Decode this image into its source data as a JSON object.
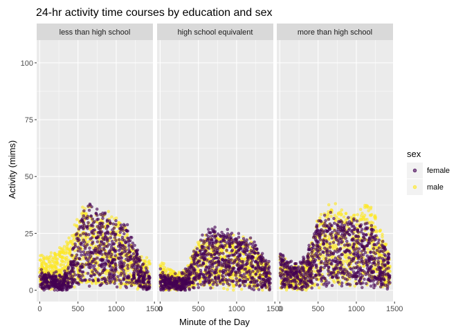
{
  "chart_data": {
    "type": "scatter",
    "title": "24-hr activity time courses by education and sex",
    "xlabel": "Minute of the Day",
    "ylabel": "Activity (mims)",
    "xlim": [
      -40,
      1480
    ],
    "ylim": [
      -5,
      110
    ],
    "x_ticks": [
      0,
      500,
      1000,
      1500
    ],
    "x_tick_labels": [
      "0",
      "500",
      "1000",
      "1500"
    ],
    "y_ticks": [
      0,
      25,
      50,
      75,
      100
    ],
    "y_tick_labels": [
      "0",
      "25",
      "50",
      "75",
      "100"
    ],
    "grid": true,
    "legend": {
      "title": "sex",
      "position": "right"
    },
    "series": [
      {
        "name": "female",
        "color": "#440154"
      },
      {
        "name": "male",
        "color": "#FDE725"
      }
    ],
    "facets": [
      {
        "label": "less than high school",
        "profiles": {
          "female": [
            [
              0,
              4
            ],
            [
              120,
              5
            ],
            [
              240,
              3
            ],
            [
              360,
              5
            ],
            [
              420,
              10
            ],
            [
              480,
              15
            ],
            [
              540,
              20
            ],
            [
              600,
              22
            ],
            [
              660,
              24
            ],
            [
              720,
              22
            ],
            [
              780,
              21
            ],
            [
              840,
              22
            ],
            [
              900,
              20
            ],
            [
              960,
              19
            ],
            [
              1020,
              20
            ],
            [
              1080,
              19
            ],
            [
              1140,
              17
            ],
            [
              1200,
              15
            ],
            [
              1260,
              12
            ],
            [
              1320,
              8
            ],
            [
              1380,
              6
            ],
            [
              1440,
              4
            ]
          ],
          "male": [
            [
              0,
              9
            ],
            [
              120,
              9
            ],
            [
              240,
              11
            ],
            [
              360,
              12
            ],
            [
              420,
              16
            ],
            [
              480,
              19
            ],
            [
              540,
              21
            ],
            [
              600,
              22
            ],
            [
              660,
              23
            ],
            [
              720,
              23
            ],
            [
              780,
              22
            ],
            [
              840,
              22
            ],
            [
              900,
              21
            ],
            [
              960,
              20
            ],
            [
              1020,
              19
            ],
            [
              1080,
              18
            ],
            [
              1140,
              16
            ],
            [
              1200,
              14
            ],
            [
              1260,
              11
            ],
            [
              1320,
              9
            ],
            [
              1380,
              8
            ],
            [
              1440,
              7
            ]
          ]
        }
      },
      {
        "label": "high school equivalent",
        "profiles": {
          "female": [
            [
              0,
              5
            ],
            [
              120,
              3
            ],
            [
              240,
              3
            ],
            [
              360,
              5
            ],
            [
              420,
              9
            ],
            [
              480,
              12
            ],
            [
              540,
              14
            ],
            [
              600,
              16
            ],
            [
              660,
              17
            ],
            [
              720,
              17
            ],
            [
              780,
              16
            ],
            [
              840,
              16
            ],
            [
              900,
              16
            ],
            [
              960,
              15
            ],
            [
              1020,
              15
            ],
            [
              1080,
              15
            ],
            [
              1140,
              14
            ],
            [
              1200,
              13
            ],
            [
              1260,
              12
            ],
            [
              1320,
              10
            ],
            [
              1380,
              8
            ],
            [
              1440,
              6
            ]
          ],
          "male": [
            [
              0,
              7
            ],
            [
              120,
              5
            ],
            [
              240,
              4
            ],
            [
              360,
              6
            ],
            [
              420,
              10
            ],
            [
              480,
              13
            ],
            [
              540,
              14
            ],
            [
              600,
              15
            ],
            [
              660,
              15
            ],
            [
              720,
              15
            ],
            [
              780,
              15
            ],
            [
              840,
              15
            ],
            [
              900,
              14
            ],
            [
              960,
              14
            ],
            [
              1020,
              14
            ],
            [
              1080,
              14
            ],
            [
              1140,
              13
            ],
            [
              1200,
              12
            ],
            [
              1260,
              11
            ],
            [
              1320,
              9
            ],
            [
              1380,
              8
            ],
            [
              1440,
              6
            ]
          ]
        }
      },
      {
        "label": "more than high school",
        "profiles": {
          "female": [
            [
              0,
              10
            ],
            [
              120,
              8
            ],
            [
              240,
              7
            ],
            [
              360,
              10
            ],
            [
              420,
              14
            ],
            [
              480,
              18
            ],
            [
              540,
              20
            ],
            [
              600,
              21
            ],
            [
              660,
              21
            ],
            [
              720,
              20
            ],
            [
              780,
              19
            ],
            [
              840,
              19
            ],
            [
              900,
              19
            ],
            [
              960,
              19
            ],
            [
              1020,
              18
            ],
            [
              1080,
              19
            ],
            [
              1140,
              19
            ],
            [
              1200,
              18
            ],
            [
              1260,
              16
            ],
            [
              1320,
              14
            ],
            [
              1380,
              12
            ],
            [
              1440,
              10
            ]
          ],
          "male": [
            [
              0,
              10
            ],
            [
              120,
              7
            ],
            [
              240,
              6
            ],
            [
              360,
              9
            ],
            [
              420,
              14
            ],
            [
              480,
              19
            ],
            [
              540,
              22
            ],
            [
              600,
              23
            ],
            [
              660,
              24
            ],
            [
              720,
              23
            ],
            [
              780,
              22
            ],
            [
              840,
              22
            ],
            [
              900,
              21
            ],
            [
              960,
              21
            ],
            [
              1020,
              22
            ],
            [
              1080,
              23
            ],
            [
              1140,
              25
            ],
            [
              1200,
              23
            ],
            [
              1260,
              19
            ],
            [
              1320,
              16
            ],
            [
              1380,
              13
            ],
            [
              1440,
              10
            ]
          ]
        }
      }
    ]
  }
}
